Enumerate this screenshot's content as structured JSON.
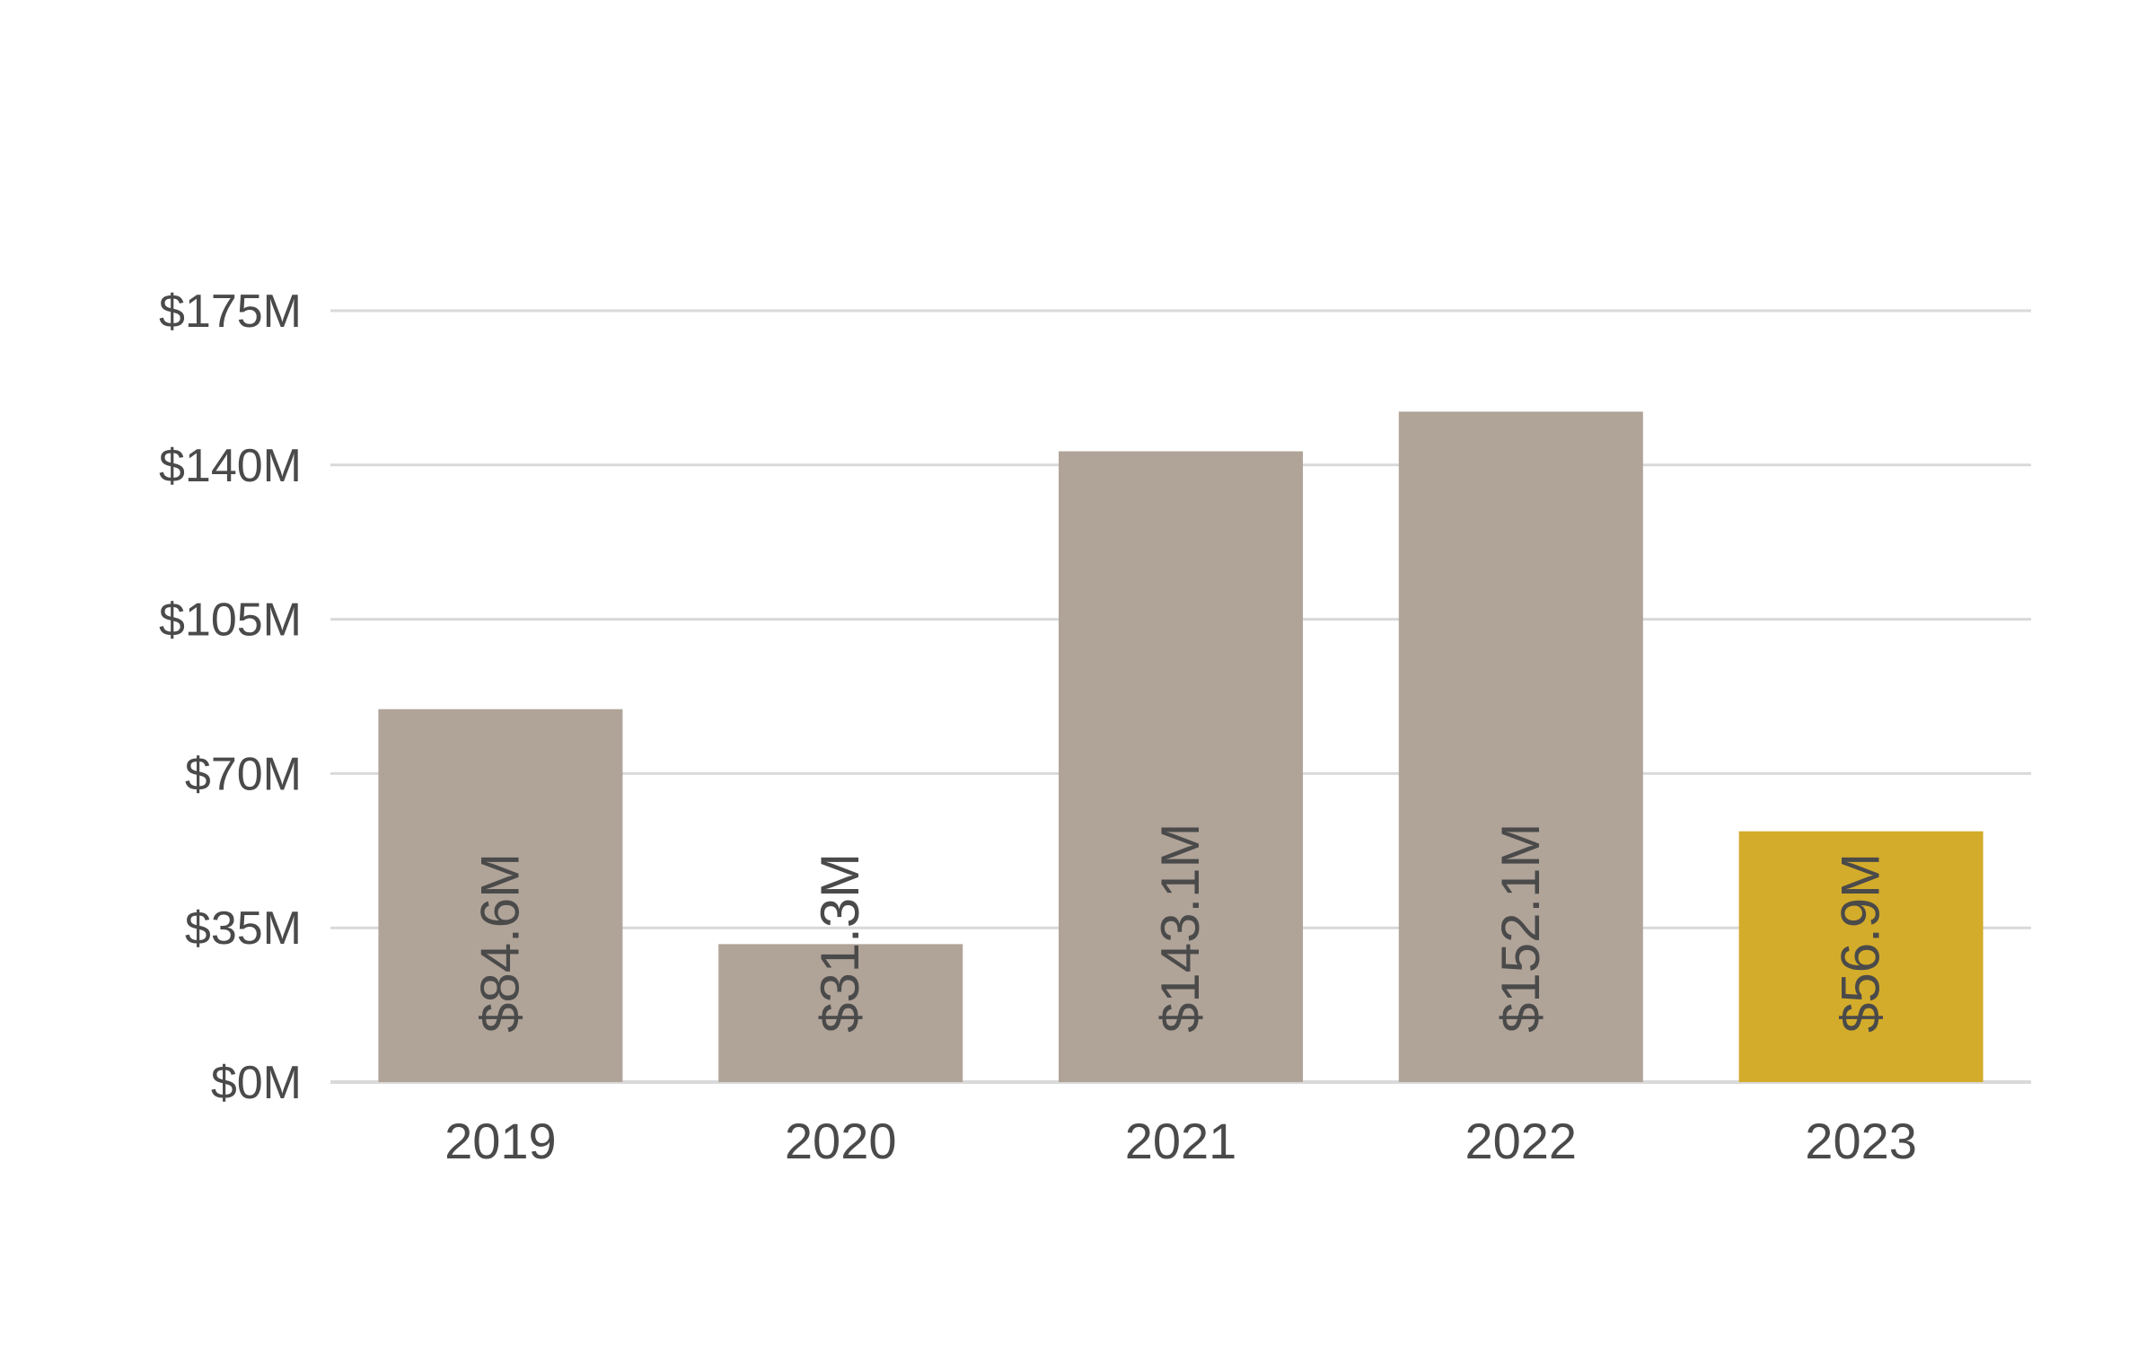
{
  "chart_data": {
    "type": "bar",
    "title": "",
    "xlabel": "",
    "ylabel": "",
    "categories": [
      "2019",
      "2020",
      "2021",
      "2022",
      "2023"
    ],
    "values": [
      84.6,
      31.3,
      143.1,
      152.1,
      56.9
    ],
    "data_labels": [
      "$84.6M",
      "$31.3M",
      "$143.1M",
      "$152.1M",
      "$56.9M"
    ],
    "ylim": [
      0,
      175
    ],
    "yticks": [
      0,
      35,
      70,
      105,
      140,
      175
    ],
    "ytick_labels": [
      "$0M",
      "$35M",
      "$70M",
      "$105M",
      "$140M",
      "$175M"
    ],
    "grid": true,
    "legend": "none",
    "colors": {
      "bar": "#b0a398",
      "highlight_bar": "#d4ac2b",
      "grid": "#d9d9d9",
      "text": "#4a4a4a"
    },
    "highlight_index": 4
  }
}
